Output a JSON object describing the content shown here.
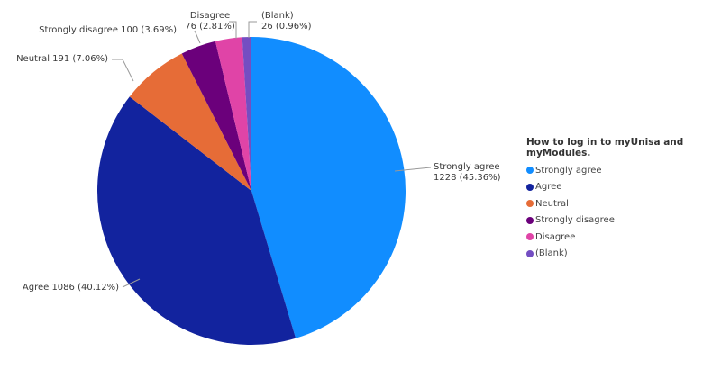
{
  "chart_data": {
    "type": "pie",
    "legend_title": "How to log in to myUnisa and myModules.",
    "legend_position": "right",
    "slices": [
      {
        "name": "Strongly agree",
        "value": 1228,
        "percent": "45.36%",
        "color": "#118DFF",
        "label_line1": "Strongly agree",
        "label_line2": "1228 (45.36%)"
      },
      {
        "name": "Agree",
        "value": 1086,
        "percent": "40.12%",
        "color": "#12239E",
        "label_line1": "Agree 1086 (40.12%)",
        "label_line2": ""
      },
      {
        "name": "Neutral",
        "value": 191,
        "percent": "7.06%",
        "color": "#E66C37",
        "label_line1": "Neutral 191 (7.06%)",
        "label_line2": ""
      },
      {
        "name": "Strongly disagree",
        "value": 100,
        "percent": "3.69%",
        "color": "#6B007B",
        "label_line1": "Strongly disagree 100 (3.69%)",
        "label_line2": ""
      },
      {
        "name": "Disagree",
        "value": 76,
        "percent": "2.81%",
        "color": "#E044A7",
        "label_line1": "Disagree",
        "label_line2": "76 (2.81%)"
      },
      {
        "name": "(Blank)",
        "value": 26,
        "percent": "0.96%",
        "color": "#744EC2",
        "label_line1": "(Blank)",
        "label_line2": "26 (0.96%)"
      }
    ]
  }
}
